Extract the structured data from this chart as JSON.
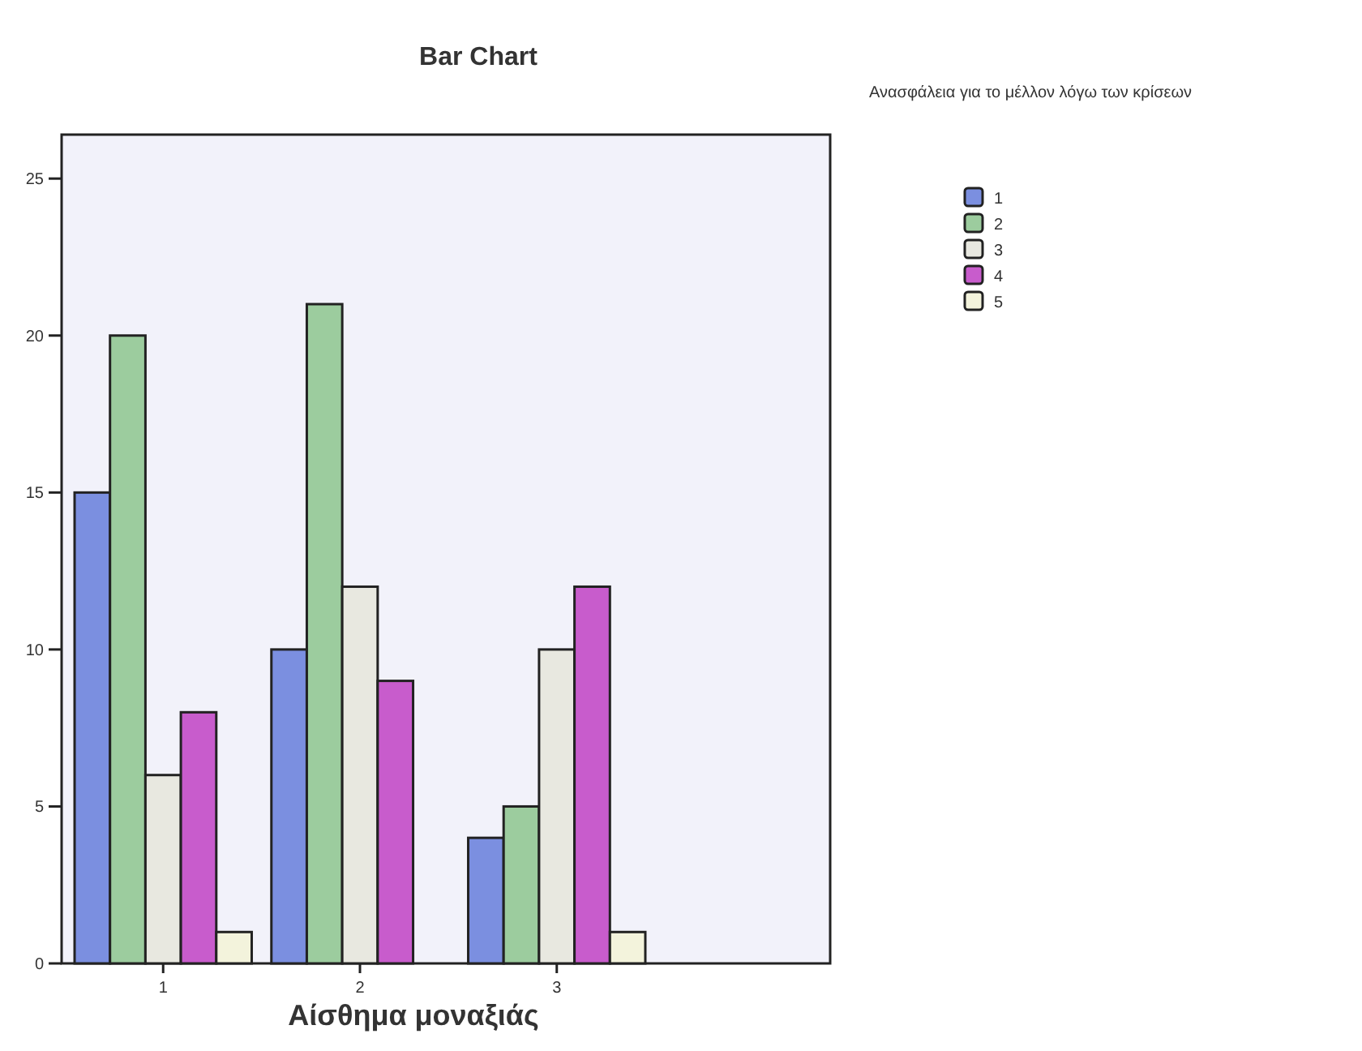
{
  "chart_data": {
    "type": "bar",
    "title": "Bar Chart",
    "xlabel": "Αίσθημα μοναξιάς",
    "legend_title": "Ανασφάλεια για το μέλλον λόγω των κρίσεων",
    "categories": [
      "1",
      "2",
      "3"
    ],
    "series": [
      {
        "name": "1",
        "color": "#7b8fe0",
        "values": [
          15,
          10,
          4
        ]
      },
      {
        "name": "2",
        "color": "#9ccc9e",
        "values": [
          20,
          21,
          5
        ]
      },
      {
        "name": "3",
        "color": "#e8e8e0",
        "values": [
          6,
          12,
          10
        ]
      },
      {
        "name": "4",
        "color": "#c85ccc",
        "values": [
          8,
          9,
          12
        ]
      },
      {
        "name": "5",
        "color": "#f3f3dc",
        "values": [
          1,
          null,
          1
        ]
      }
    ],
    "ylim": [
      0,
      26.4
    ],
    "yticks": [
      0,
      5,
      10,
      15,
      20,
      25
    ],
    "grid": false,
    "legend": "top right"
  }
}
